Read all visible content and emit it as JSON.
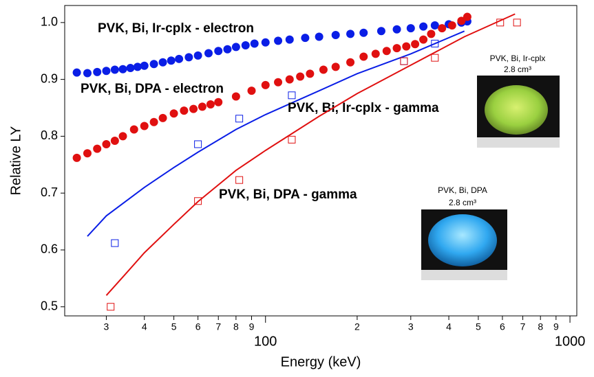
{
  "chart_data": {
    "type": "scatter",
    "x_label": "Energy (keV)",
    "y_label": "Relative LY",
    "xscale": "log",
    "xlim": [
      21.9,
      1053
    ],
    "ylim": [
      0.484,
      1.03
    ],
    "xticks": [
      {
        "value": 30,
        "label": "3"
      },
      {
        "value": 40,
        "label": "4"
      },
      {
        "value": 50,
        "label": "5"
      },
      {
        "value": 60,
        "label": "6"
      },
      {
        "value": 70,
        "label": "7"
      },
      {
        "value": 80,
        "label": "8"
      },
      {
        "value": 90,
        "label": "9"
      },
      100,
      {
        "value": 200,
        "label": "2"
      },
      {
        "value": 300,
        "label": "3"
      },
      {
        "value": 400,
        "label": "4"
      },
      {
        "value": 500,
        "label": "5"
      },
      {
        "value": 600,
        "label": "6"
      },
      {
        "value": 700,
        "label": "7"
      },
      {
        "value": 800,
        "label": "8"
      },
      {
        "value": 900,
        "label": "9"
      },
      1000
    ],
    "yticks": [
      0.5,
      0.6,
      0.7,
      0.8,
      0.9,
      {
        "value": 1,
        "label": "1.0"
      }
    ],
    "series": [
      {
        "name": "PVK, Bi, Ir-cplx - electron",
        "color": "#0a1ee6",
        "marker": "circle",
        "x": [
          24,
          26,
          28,
          30,
          32,
          34,
          36,
          38,
          40,
          43,
          46,
          49,
          52,
          56,
          60,
          65,
          70,
          75,
          80,
          86,
          92,
          100,
          110,
          120,
          135,
          150,
          170,
          190,
          210,
          240,
          270,
          300,
          330,
          360,
          400,
          440,
          460
        ],
        "values": [
          0.912,
          0.911,
          0.913,
          0.915,
          0.917,
          0.918,
          0.92,
          0.922,
          0.924,
          0.927,
          0.93,
          0.933,
          0.936,
          0.939,
          0.942,
          0.946,
          0.95,
          0.953,
          0.957,
          0.96,
          0.963,
          0.965,
          0.968,
          0.97,
          0.973,
          0.975,
          0.978,
          0.98,
          0.982,
          0.985,
          0.988,
          0.99,
          0.993,
          0.995,
          0.997,
          1.0,
          1.002
        ]
      },
      {
        "name": "PVK, Bi, DPA - electron",
        "color": "#e01010",
        "marker": "circle",
        "x": [
          24,
          26,
          28,
          30,
          32,
          34,
          37,
          40,
          43,
          46,
          50,
          54,
          58,
          62,
          66,
          70,
          80,
          90,
          100,
          110,
          120,
          130,
          140,
          155,
          170,
          190,
          210,
          230,
          250,
          270,
          290,
          310,
          330,
          350,
          380,
          410,
          440,
          460
        ],
        "values": [
          0.762,
          0.77,
          0.778,
          0.786,
          0.792,
          0.8,
          0.812,
          0.818,
          0.825,
          0.832,
          0.84,
          0.845,
          0.848,
          0.852,
          0.856,
          0.86,
          0.87,
          0.88,
          0.89,
          0.895,
          0.9,
          0.905,
          0.91,
          0.917,
          0.922,
          0.93,
          0.94,
          0.945,
          0.95,
          0.955,
          0.958,
          0.962,
          0.97,
          0.98,
          0.99,
          0.995,
          1.003,
          1.01
        ]
      },
      {
        "name": "PVK, Bi, Ir-cplx - gamma",
        "color": "#0a1ee6",
        "marker": "square",
        "x": [
          32,
          60,
          82,
          122,
          285,
          360
        ],
        "values": [
          0.612,
          0.786,
          0.831,
          0.872,
          0.932,
          0.963
        ],
        "fit": {
          "x": [
            26,
            30,
            40,
            50,
            60,
            80,
            100,
            150,
            200,
            300,
            450
          ],
          "values": [
            0.624,
            0.66,
            0.71,
            0.745,
            0.772,
            0.812,
            0.838,
            0.88,
            0.91,
            0.945,
            0.985
          ]
        }
      },
      {
        "name": "PVK, Bi, DPA - gamma",
        "color": "#e01010",
        "marker": "square",
        "x": [
          31,
          60,
          82,
          122,
          285,
          360,
          590,
          670
        ],
        "values": [
          0.5,
          0.686,
          0.723,
          0.794,
          0.932,
          0.938,
          1.0,
          1.0
        ],
        "fit": {
          "x": [
            30,
            35,
            40,
            50,
            60,
            80,
            100,
            150,
            200,
            300,
            450,
            660
          ],
          "values": [
            0.52,
            0.56,
            0.595,
            0.645,
            0.685,
            0.74,
            0.775,
            0.835,
            0.875,
            0.925,
            0.975,
            1.015
          ]
        }
      }
    ],
    "insets": [
      {
        "caption": "PVK, Bi, Ir-cplx",
        "volume": "2.8 cm³"
      },
      {
        "caption": "PVK, Bi, DPA",
        "volume": "2.8 cm³"
      }
    ]
  }
}
